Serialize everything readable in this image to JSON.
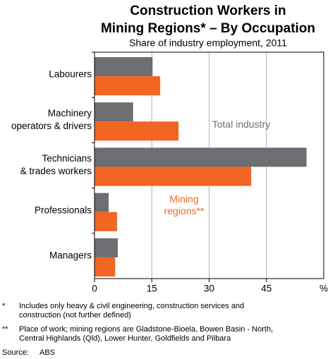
{
  "chart_data": {
    "type": "hbar",
    "title": [
      "Construction Workers in",
      "Mining Regions* – By Occupation"
    ],
    "subtitle": "Share of industry employment, 2011",
    "categories": [
      [
        "Labourers"
      ],
      [
        "Machinery",
        "operators & drivers"
      ],
      [
        "Technicians",
        "& trades workers"
      ],
      [
        "Professionals"
      ],
      [
        "Managers"
      ]
    ],
    "series": [
      {
        "name": "Total industry",
        "color": "#6d6e71",
        "values": [
          15.2,
          10.1,
          55.5,
          3.7,
          6.1
        ]
      },
      {
        "name": "Mining regions**",
        "color": "#f26522",
        "values": [
          17.2,
          22.0,
          41.0,
          5.9,
          5.4
        ]
      }
    ],
    "xlim": [
      0,
      60
    ],
    "xticks": [
      0,
      15,
      30,
      45
    ],
    "x_unit": "%",
    "grid": true,
    "notes": [
      {
        "marker": "*",
        "text": "Includes only heavy & civil engineering, construction services and construction (not further defined)"
      },
      {
        "marker": "**",
        "text": "Place of work; mining regions are Gladstone-Bioela, Bowen Basin - North, Central Highlands (Qld), Lower Hunter, Goldfields and Pilbara"
      }
    ],
    "source": {
      "label": "Source:",
      "text": "ABS"
    }
  }
}
